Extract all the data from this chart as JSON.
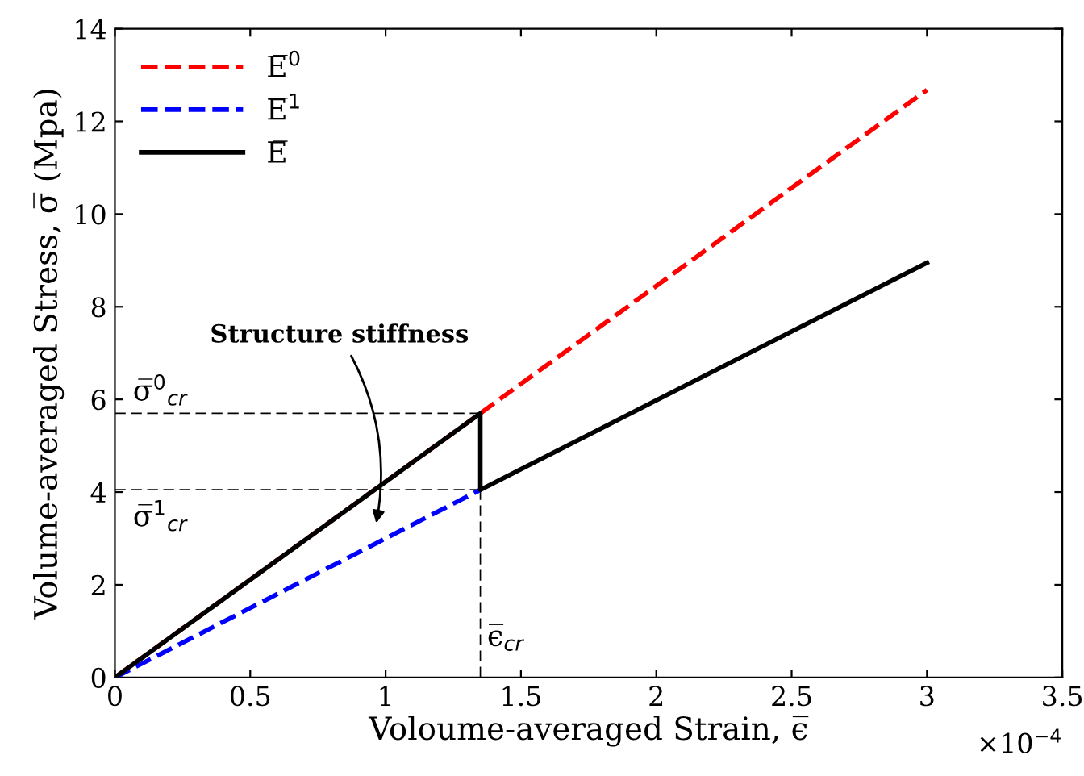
{
  "chart_data": {
    "type": "line",
    "xlabel": "Voloume-averaged Strain, ϵ̅",
    "ylabel": "Volume-averaged Stress, σ̅ (Mpa)",
    "series": [
      {
        "name": "E̅$^{0}$",
        "color": "#ff0000",
        "line_style": "dashed",
        "x": [
          0,
          1.35,
          3
        ],
        "values": [
          0,
          5.7,
          12.68
        ]
      },
      {
        "name": "E̅$^{1}$",
        "color": "#0000ff",
        "line_style": "dashed",
        "x": [
          0,
          1.35
        ],
        "values": [
          0,
          4.05
        ]
      },
      {
        "name": "E̅",
        "color": "#000000",
        "line_style": "solid",
        "x": [
          0,
          1.35,
          1.35,
          3
        ],
        "values": [
          0,
          5.7,
          4.05,
          8.95
        ]
      }
    ],
    "ref_lines": [
      {
        "axis": "y",
        "value": 5.7,
        "label": "σ̅$^{0}$$_{cr}$",
        "color": "#000000",
        "line_style": "dashed"
      },
      {
        "axis": "y",
        "value": 4.05,
        "label": "σ̅$^{1}$$_{cr}$",
        "color": "#000000",
        "line_style": "dashed"
      },
      {
        "axis": "x",
        "value": 1.35,
        "label": "ϵ̅$_{cr}$",
        "color": "#000000",
        "line_style": "dashed"
      }
    ],
    "annotations": [
      "Structure stiffness",
      "×10$^{−4}$"
    ],
    "xlim": [
      0,
      3.5
    ],
    "xticks": [
      0,
      0.5,
      1,
      1.5,
      2,
      2.5,
      3,
      3.5
    ],
    "ylim": [
      0,
      14
    ],
    "yticks": [
      0,
      2,
      4,
      6,
      8,
      10,
      12,
      14
    ],
    "grid": false,
    "legend": "top left",
    "marker": "none"
  }
}
